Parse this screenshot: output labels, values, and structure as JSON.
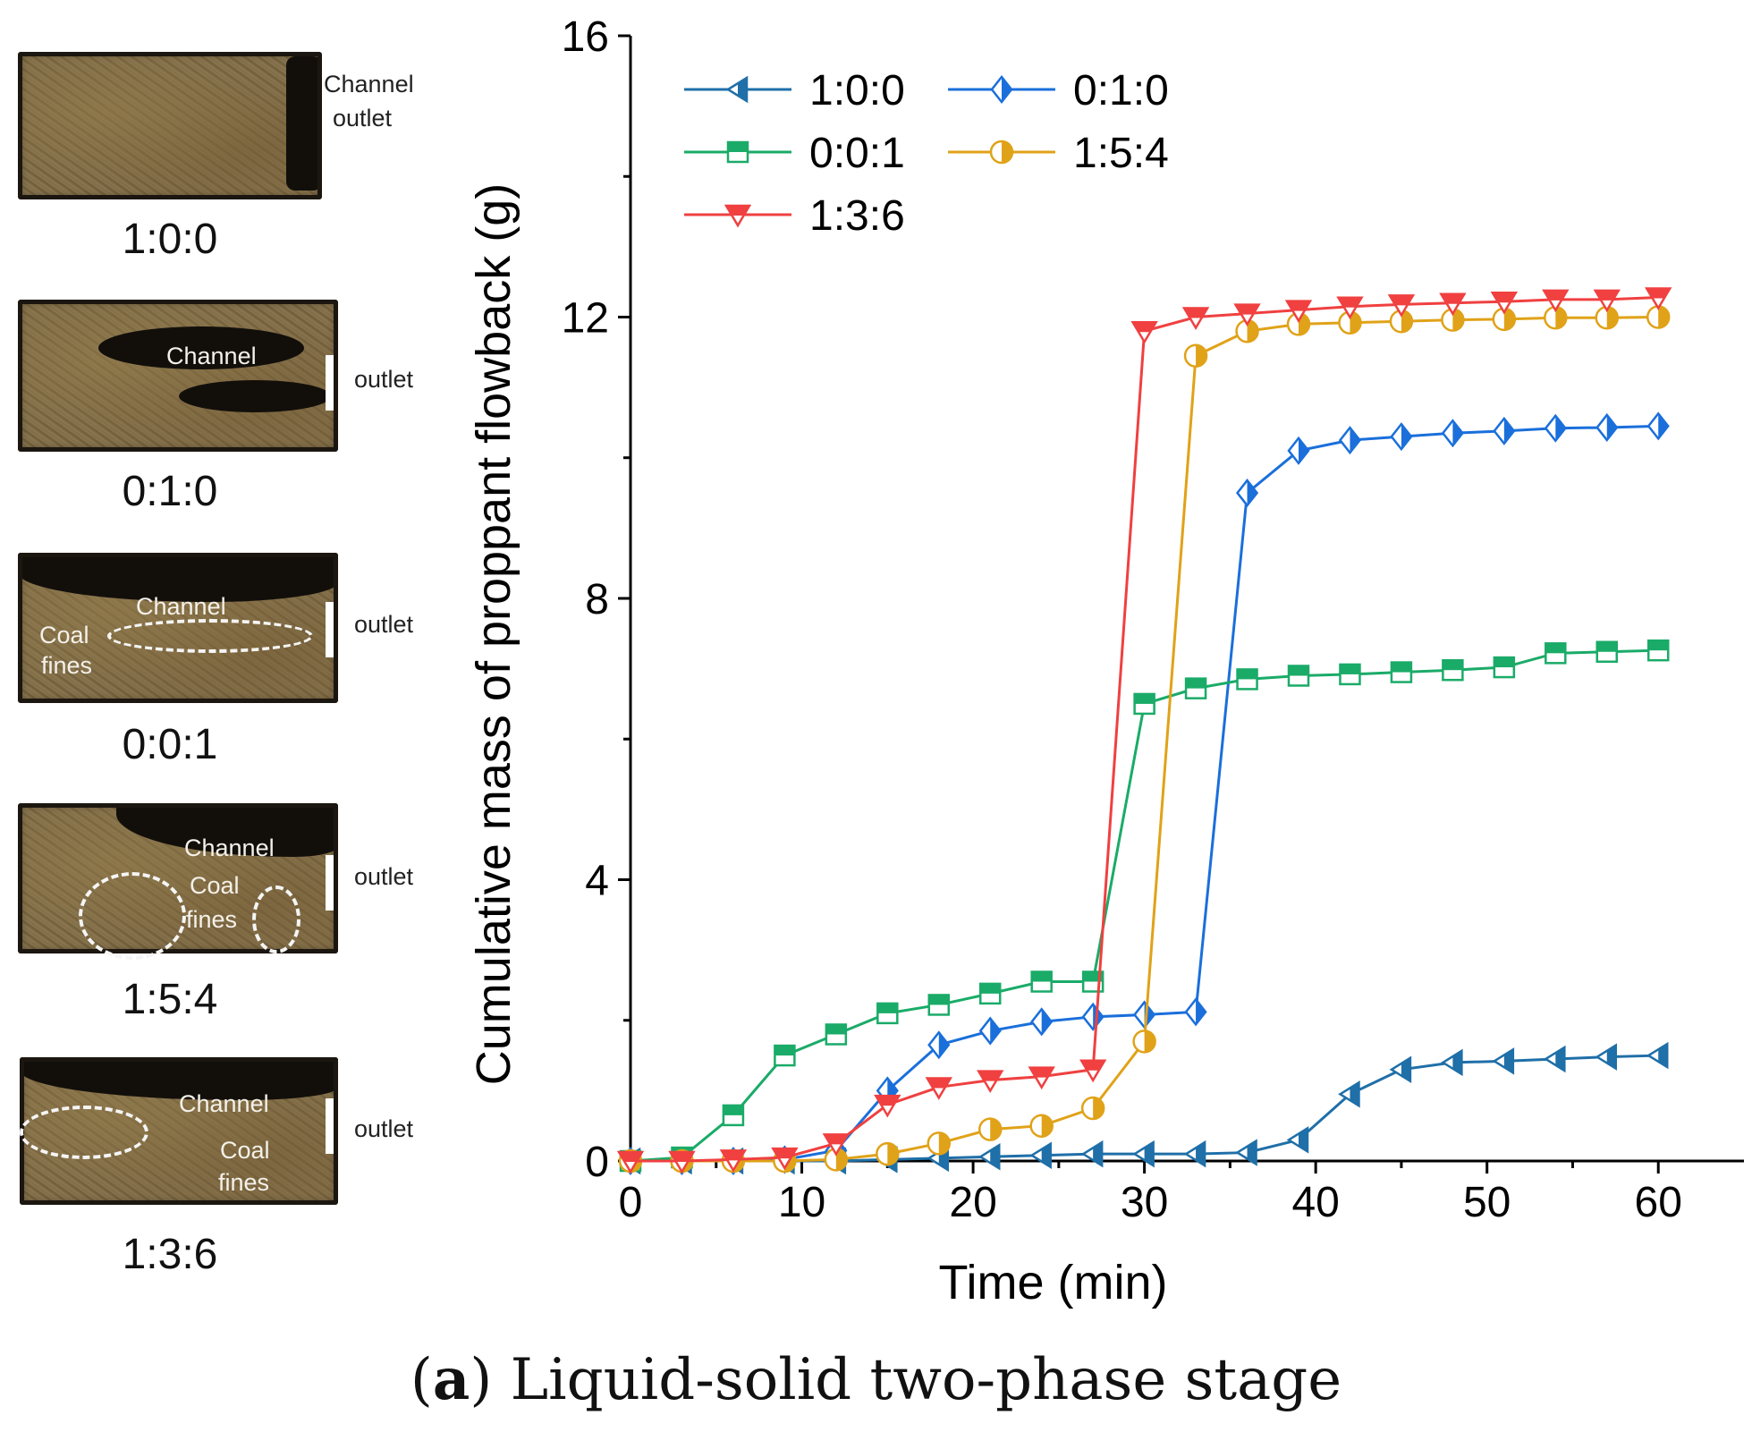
{
  "photos": [
    {
      "label": "1:0:0",
      "annotations": [
        "Channel",
        "outlet"
      ]
    },
    {
      "label": "0:1:0",
      "annotations": [
        "Channel",
        "outlet"
      ]
    },
    {
      "label": "0:0:1",
      "annotations": [
        "Channel",
        "Coal",
        "fines",
        "outlet"
      ]
    },
    {
      "label": "1:5:4",
      "annotations": [
        "Channel",
        "Coal",
        "fines",
        "outlet"
      ]
    },
    {
      "label": "1:3:6",
      "annotations": [
        "Channel",
        "Coal",
        "fines",
        "outlet"
      ]
    }
  ],
  "caption": {
    "letter": "a",
    "text": "Liquid-solid two-phase stage"
  },
  "chart_data": {
    "type": "line",
    "title": "",
    "xlabel": "Time (min)",
    "ylabel": "Cumulative mass of proppant flowback (g)",
    "xlim": [
      0,
      65
    ],
    "ylim": [
      0,
      16
    ],
    "xticks": [
      0,
      10,
      20,
      30,
      40,
      50,
      60
    ],
    "yticks": [
      0,
      4,
      8,
      12,
      16
    ],
    "legend_position": "top-left",
    "grid": false,
    "series": [
      {
        "name": "1:0:0",
        "color": "#1f6fa8",
        "marker": "triangle-left-half",
        "x": [
          0,
          3,
          6,
          9,
          12,
          15,
          18,
          21,
          24,
          27,
          30,
          33,
          36,
          39,
          42,
          45,
          48,
          51,
          54,
          57,
          60
        ],
        "y": [
          0,
          0,
          0,
          0,
          0,
          0.02,
          0.04,
          0.06,
          0.08,
          0.1,
          0.1,
          0.1,
          0.12,
          0.3,
          0.95,
          1.3,
          1.4,
          1.42,
          1.45,
          1.48,
          1.5
        ]
      },
      {
        "name": "0:1:0",
        "color": "#1a6fdb",
        "marker": "diamond-half",
        "x": [
          0,
          3,
          6,
          9,
          12,
          15,
          18,
          21,
          24,
          27,
          30,
          33,
          36,
          39,
          42,
          45,
          48,
          51,
          54,
          57,
          60
        ],
        "y": [
          0,
          0,
          0,
          0.02,
          0.15,
          1.0,
          1.65,
          1.85,
          1.98,
          2.05,
          2.08,
          2.12,
          9.5,
          10.1,
          10.25,
          10.3,
          10.35,
          10.38,
          10.42,
          10.43,
          10.45
        ]
      },
      {
        "name": "0:0:1",
        "color": "#1aab68",
        "marker": "square-half",
        "x": [
          0,
          3,
          6,
          9,
          12,
          15,
          18,
          21,
          24,
          27,
          30,
          33,
          36,
          39,
          42,
          45,
          48,
          51,
          54,
          57,
          60
        ],
        "y": [
          0,
          0.05,
          0.65,
          1.5,
          1.8,
          2.1,
          2.22,
          2.38,
          2.55,
          2.55,
          6.5,
          6.72,
          6.85,
          6.9,
          6.92,
          6.95,
          6.98,
          7.02,
          7.22,
          7.24,
          7.26
        ]
      },
      {
        "name": "1:5:4",
        "color": "#e0a218",
        "marker": "circle-half",
        "x": [
          0,
          3,
          6,
          9,
          12,
          15,
          18,
          21,
          24,
          27,
          30,
          33,
          36,
          39,
          42,
          45,
          48,
          51,
          54,
          57,
          60
        ],
        "y": [
          0,
          0,
          0,
          0,
          0.02,
          0.1,
          0.25,
          0.45,
          0.5,
          0.75,
          1.7,
          11.45,
          11.8,
          11.9,
          11.92,
          11.94,
          11.96,
          11.97,
          11.99,
          11.99,
          12.0
        ]
      },
      {
        "name": "1:3:6",
        "color": "#f04040",
        "marker": "triangle-down-half",
        "x": [
          0,
          3,
          6,
          9,
          12,
          15,
          18,
          21,
          24,
          27,
          30,
          33,
          36,
          39,
          42,
          45,
          48,
          51,
          54,
          57,
          60
        ],
        "y": [
          0,
          0,
          0.02,
          0.05,
          0.25,
          0.8,
          1.05,
          1.15,
          1.2,
          1.3,
          11.8,
          12.0,
          12.05,
          12.1,
          12.15,
          12.18,
          12.2,
          12.22,
          12.25,
          12.25,
          12.28
        ]
      }
    ]
  }
}
